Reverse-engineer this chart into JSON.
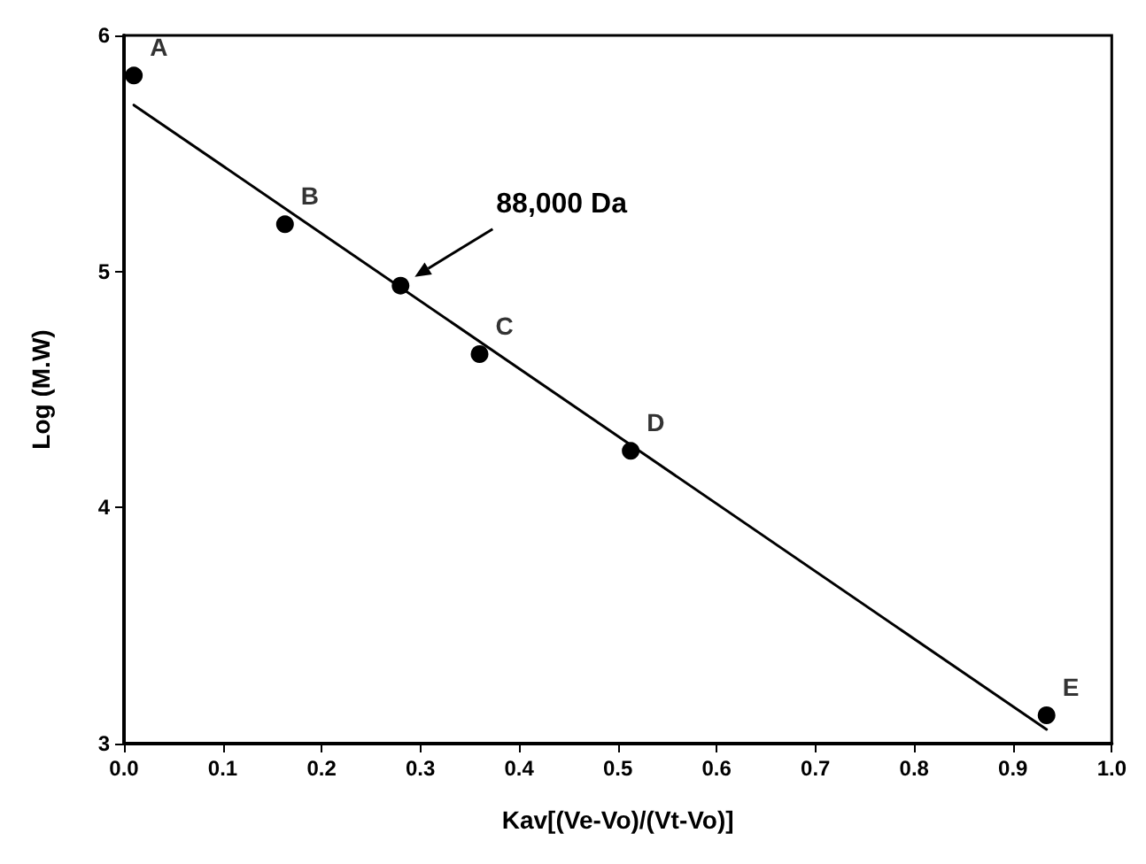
{
  "chart_data": {
    "type": "scatter",
    "xlabel": "Kav[(Ve-Vo)/(Vt-Vo)]",
    "ylabel": "Log (M.W)",
    "series": [
      {
        "color": "#000000",
        "marker": "circle",
        "x": [
          0.01,
          0.163,
          0.28,
          0.36,
          0.513,
          0.934
        ],
        "values": [
          5.83,
          5.2,
          4.94,
          4.65,
          4.24,
          3.12
        ]
      },
      {
        "type": "line",
        "color": "#000000",
        "marker": "none",
        "line_style": "solid",
        "x": [
          0.01,
          0.934
        ],
        "values": [
          5.705,
          3.06
        ]
      }
    ],
    "xlim": [
      0,
      1
    ],
    "xticks": [
      {
        "value": 0,
        "label": "0.0"
      },
      0.1,
      0.2,
      0.3,
      0.4,
      0.5,
      0.6,
      0.7,
      0.8,
      0.9,
      {
        "value": 1,
        "label": "1.0"
      }
    ],
    "ylim": [
      3,
      6
    ],
    "yticks": [
      3,
      4,
      5,
      6
    ],
    "grid": false,
    "annotations": [
      {
        "text": "A",
        "x": 0.01,
        "y": 5.83
      },
      {
        "text": "B",
        "x": 0.163,
        "y": 5.2
      },
      "88,000 Da",
      {
        "text": "C",
        "x": 0.36,
        "y": 4.65
      },
      {
        "text": "D",
        "x": 0.513,
        "y": 4.24
      },
      {
        "text": "E",
        "x": 0.934,
        "y": 3.12
      }
    ]
  }
}
